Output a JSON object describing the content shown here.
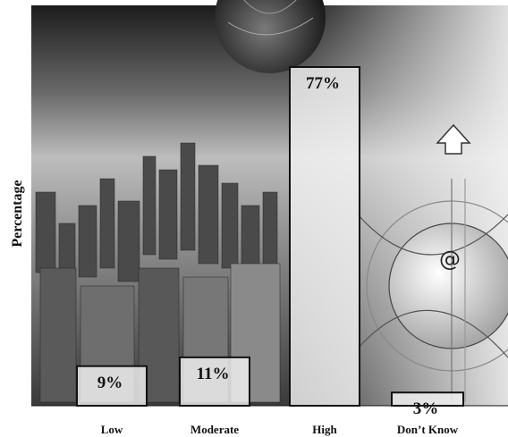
{
  "chart_data": {
    "type": "bar",
    "ylabel": "Percentage",
    "xlabel": "",
    "categories": [
      "Low",
      "Moderate",
      "High",
      "Don’t Know"
    ],
    "values": [
      9,
      11,
      77,
      3
    ],
    "data_labels": [
      "9%",
      "11%",
      "77%",
      "3%"
    ],
    "ylim": [
      0,
      100
    ],
    "grid": false,
    "legend": "none"
  },
  "colors": {
    "bar_fill": "#f2f2f2",
    "bar_stroke": "#111111",
    "background_dark": "#2e2e2e",
    "background_light": "#d9d9d9"
  },
  "background": {
    "description_icons": [
      "globe-icon",
      "city-skyline",
      "at-sign-icon",
      "up-arrow-icon"
    ]
  }
}
